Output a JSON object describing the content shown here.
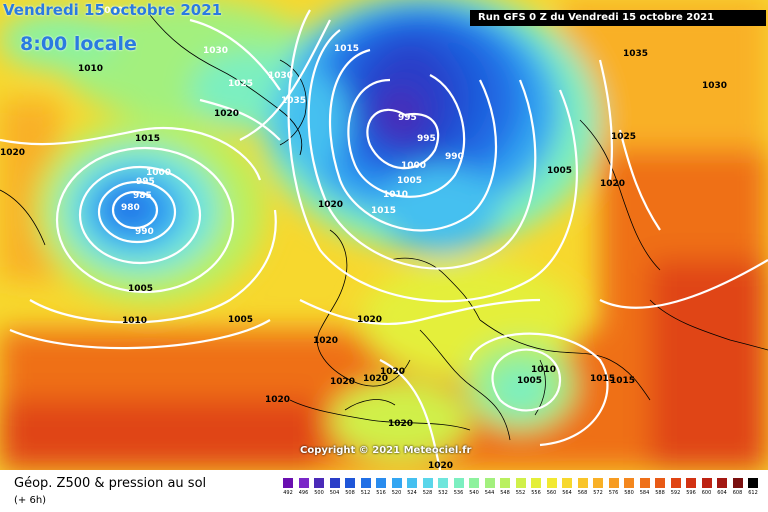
{
  "header": {
    "date": "Vendredi 15 octobre 2021",
    "time": "8:00 locale",
    "run": "Run GFS 0 Z du Vendredi 15 octobre 2021"
  },
  "copyright": "Copyright © 2021 Meteociel.fr",
  "footer": {
    "title": "Géop. Z500 & pression au sol",
    "subtitle": "(+ 6h)"
  },
  "legend": {
    "labels": [
      "492",
      "496",
      "500",
      "504",
      "508",
      "512",
      "516",
      "520",
      "524",
      "528",
      "532",
      "536",
      "540",
      "544",
      "548",
      "552",
      "556",
      "560",
      "564",
      "568",
      "572",
      "576",
      "580",
      "584",
      "588",
      "592",
      "596",
      "600",
      "604",
      "608",
      "612"
    ],
    "colors": [
      "#6a0fb0",
      "#7a28c8",
      "#4a2ab8",
      "#2a3ec8",
      "#1f56d8",
      "#2170e6",
      "#2a8cee",
      "#33a6f2",
      "#45c0f0",
      "#5ad6ea",
      "#6fe6dc",
      "#7cefc0",
      "#8ef29e",
      "#a3f07e",
      "#baf060",
      "#d0f04a",
      "#e4ef3a",
      "#f2e932",
      "#f7d82e",
      "#f9c52a",
      "#f9b026",
      "#f79c22",
      "#f4871e",
      "#ef7019",
      "#e85a16",
      "#e04413",
      "#d23212",
      "#bd2212",
      "#a31812",
      "#7a1010",
      "#000000"
    ]
  },
  "isobars": [
    {
      "text": "1000"
    },
    {
      "text": "1010"
    },
    {
      "text": "1030"
    },
    {
      "text": "1025"
    },
    {
      "text": "1020"
    },
    {
      "text": "1030"
    },
    {
      "text": "1035"
    },
    {
      "text": "1015"
    },
    {
      "text": "1020"
    },
    {
      "text": "1000"
    },
    {
      "text": "995"
    },
    {
      "text": "985"
    },
    {
      "text": "980"
    },
    {
      "text": "990"
    },
    {
      "text": "1005"
    },
    {
      "text": "1010"
    },
    {
      "text": "1005"
    },
    {
      "text": "1020"
    },
    {
      "text": "1020"
    },
    {
      "text": "1015"
    },
    {
      "text": "995"
    },
    {
      "text": "995"
    },
    {
      "text": "990"
    },
    {
      "text": "1000"
    },
    {
      "text": "1005"
    },
    {
      "text": "1010"
    },
    {
      "text": "1015"
    },
    {
      "text": "1005"
    },
    {
      "text": "1020"
    },
    {
      "text": "1025"
    },
    {
      "text": "1035"
    },
    {
      "text": "1030"
    },
    {
      "text": "1020"
    },
    {
      "text": "1020"
    },
    {
      "text": "1020"
    },
    {
      "text": "1020"
    },
    {
      "text": "1020"
    },
    {
      "text": "1010"
    },
    {
      "text": "1005"
    },
    {
      "text": "1015"
    },
    {
      "text": "1015"
    },
    {
      "text": "1020"
    },
    {
      "text": "1020"
    }
  ]
}
